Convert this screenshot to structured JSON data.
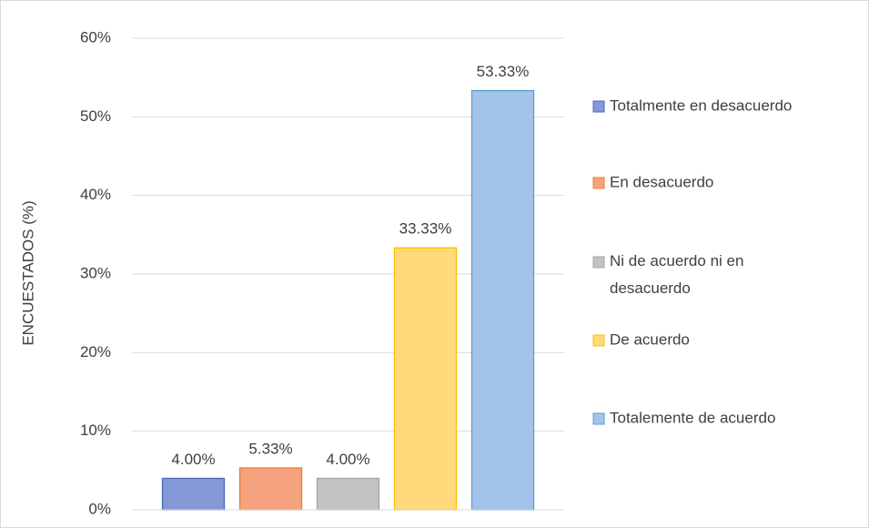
{
  "chart_data": {
    "type": "bar",
    "ylabel": "ENCUESTADOS (%)",
    "ylim": [
      0,
      60
    ],
    "yticks": [
      {
        "value": 0,
        "label": "0%"
      },
      {
        "value": 10,
        "label": "10%"
      },
      {
        "value": 20,
        "label": "20%"
      },
      {
        "value": 30,
        "label": "30%"
      },
      {
        "value": 40,
        "label": "40%"
      },
      {
        "value": 50,
        "label": "50%"
      },
      {
        "value": 60,
        "label": "60%"
      }
    ],
    "grid": true,
    "legend": "right",
    "series": [
      {
        "name": "Totalmente en desacuerdo",
        "color": "#8497d6",
        "edgecolor": "#4a6bbf",
        "values": [
          4.0
        ],
        "value_labels": [
          "4.00%"
        ]
      },
      {
        "name": "En desacuerdo",
        "color": "#f5a37f",
        "edgecolor": "#ed7d31",
        "values": [
          5.33
        ],
        "value_labels": [
          "5.33%"
        ]
      },
      {
        "name": "Ni de acuerdo ni en desacuerdo",
        "color": "#c3c3c3",
        "edgecolor": "#a5a5a5",
        "values": [
          4.0
        ],
        "value_labels": [
          "4.00%"
        ]
      },
      {
        "name": "De acuerdo",
        "color": "#ffd97a",
        "edgecolor": "#ffc000",
        "values": [
          33.33
        ],
        "value_labels": [
          "33.33%"
        ]
      },
      {
        "name": "Totalemente de acuerdo",
        "color": "#a3c4e8",
        "edgecolor": "#5b9bd5",
        "values": [
          53.33
        ],
        "value_labels": [
          "53.33%"
        ]
      }
    ]
  }
}
